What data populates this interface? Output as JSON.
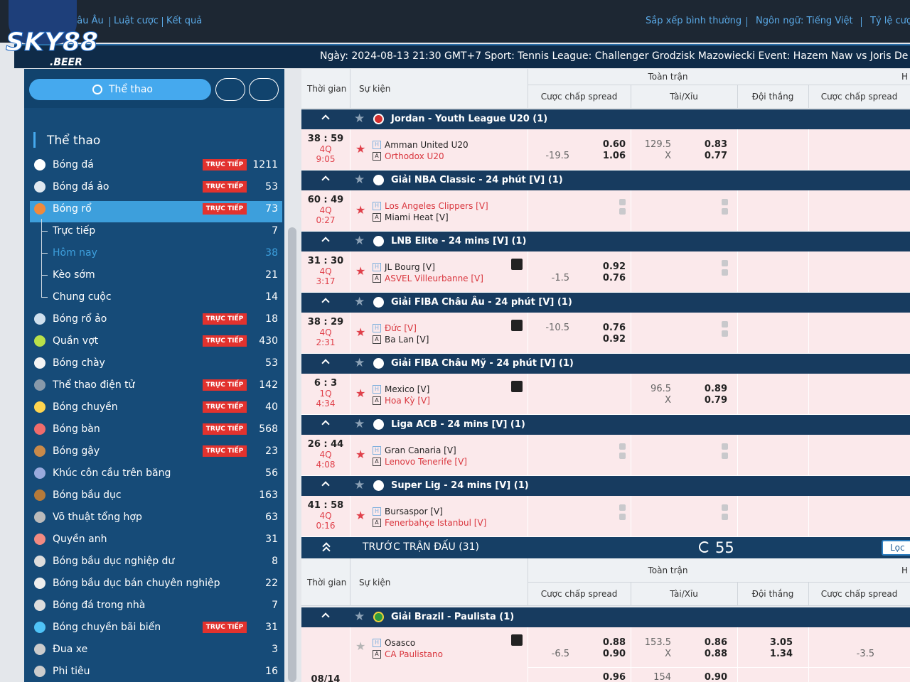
{
  "logo": {
    "text": "SKY88",
    "sub": ".BEER"
  },
  "nav": {
    "links": [
      "hâu Âu",
      "Luật cược",
      "Kết quả"
    ],
    "right": [
      "Sắp xếp bình thường",
      "Ngôn ngữ: Tiếng Việt",
      "Tỷ lệ cược"
    ]
  },
  "ticker": "Ngày:  2024-08-13 21:30 GMT+7 Sport: Tennis League: Challenger Grodzisk Mazowiecki Event: Hazem Naw vs Joris De",
  "sidebar": {
    "button": "Thể thao",
    "heading": "Thể thao",
    "live_label": "TRỰC TIẾP",
    "items": [
      {
        "name": "Bóng đá",
        "count": "1211",
        "live": true
      },
      {
        "name": "Bóng đá ảo",
        "count": "53",
        "live": true
      },
      {
        "name": "Bóng rổ",
        "count": "73",
        "live": true,
        "active": true
      },
      {
        "name": "Trực tiếp",
        "count": "7",
        "sub": true
      },
      {
        "name": "Hôm nay",
        "count": "38",
        "sub": true,
        "selected": true
      },
      {
        "name": "Kèo sớm",
        "count": "21",
        "sub": true
      },
      {
        "name": "Chung cuộc",
        "count": "14",
        "sub": true
      },
      {
        "name": "Bóng rổ ảo",
        "count": "18",
        "live": true
      },
      {
        "name": "Quần vợt",
        "count": "430",
        "live": true
      },
      {
        "name": "Bóng chày",
        "count": "53"
      },
      {
        "name": "Thể thao điện tử",
        "count": "142",
        "live": true
      },
      {
        "name": "Bóng chuyền",
        "count": "40",
        "live": true
      },
      {
        "name": "Bóng bàn",
        "count": "568",
        "live": true
      },
      {
        "name": "Bóng gậy",
        "count": "23",
        "live": true
      },
      {
        "name": "Khúc côn cầu trên băng",
        "count": "56"
      },
      {
        "name": "Bóng bầu dục",
        "count": "163"
      },
      {
        "name": "Võ thuật tổng hợp",
        "count": "63"
      },
      {
        "name": "Quyền anh",
        "count": "31"
      },
      {
        "name": "Bóng bầu dục nghiệp dư",
        "count": "8"
      },
      {
        "name": "Bóng bầu dục bán chuyên nghiệp",
        "count": "22"
      },
      {
        "name": "Bóng đá trong nhà",
        "count": "7"
      },
      {
        "name": "Bóng chuyền bãi biển",
        "count": "31",
        "live": true
      },
      {
        "name": "Đua xe",
        "count": "3"
      },
      {
        "name": "Phi tiêu",
        "count": "16"
      }
    ]
  },
  "table": {
    "header": {
      "time": "Thời gian",
      "event": "Sự kiện",
      "full": "Toàn trận",
      "hdp": "Cược chấp spread",
      "ou": "Tài/Xỉu",
      "win": "Đội thắng",
      "hdp2": "Cược chấp spread",
      "half": "H"
    },
    "home_tag": "H",
    "away_tag": "A",
    "live_leagues": [
      {
        "name": "Jordan - Youth League U20 (1)",
        "flag": "jordan",
        "matches": [
          {
            "score": "38 : 59",
            "period": "4Q",
            "clock": "9:05",
            "home": "Amman United U20",
            "away": "Orthodox U20",
            "fav": "away",
            "hdp": {
              "line": "-19.5",
              "home": "0.60",
              "away": "1.06"
            },
            "ou": {
              "line": "129.5",
              "mark": "X",
              "over": "0.83",
              "under": "0.77"
            }
          }
        ]
      },
      {
        "name": "Giải NBA Classic - 24 phút [V] (1)",
        "flag": "virtual",
        "matches": [
          {
            "score": "60 : 49",
            "period": "4Q",
            "clock": "0:27",
            "home": "Los Angeles Clippers [V]",
            "away": "Miami Heat [V]",
            "fav": "home",
            "hdp_locked": true,
            "ou_locked": true
          }
        ]
      },
      {
        "name": "LNB Elite - 24 mins [V] (1)",
        "flag": "virtual",
        "matches": [
          {
            "score": "31 : 30",
            "period": "4Q",
            "clock": "3:17",
            "home": "JL Bourg [V]",
            "away": "ASVEL Villeurbanne [V]",
            "fav": "away",
            "video": true,
            "hdp": {
              "line": "-1.5",
              "home": "0.92",
              "away": "0.76"
            },
            "ou_locked": true
          }
        ]
      },
      {
        "name": "Giải FIBA Châu Âu - 24 phút [V] (1)",
        "flag": "virtual",
        "matches": [
          {
            "score": "38 : 29",
            "period": "4Q",
            "clock": "2:31",
            "home": "Đức [V]",
            "away": "Ba Lan [V]",
            "fav": "home",
            "video": true,
            "hdp": {
              "line": "-10.5",
              "home": "0.76",
              "away": "0.92"
            },
            "ou_locked": true
          }
        ]
      },
      {
        "name": "Giải FIBA Châu Mỹ - 24 phút [V] (1)",
        "flag": "virtual",
        "matches": [
          {
            "score": "6 : 3",
            "period": "1Q",
            "clock": "4:34",
            "home": "Mexico [V]",
            "away": "Hoa Kỳ [V]",
            "fav": "away",
            "video": true,
            "ou": {
              "line": "96.5",
              "mark": "X",
              "over": "0.89",
              "under": "0.79"
            }
          }
        ]
      },
      {
        "name": "Liga ACB - 24 mins [V] (1)",
        "flag": "virtual",
        "matches": [
          {
            "score": "26 : 44",
            "period": "4Q",
            "clock": "4:08",
            "home": "Gran Canaria [V]",
            "away": "Lenovo Tenerife [V]",
            "fav": "away",
            "hdp_locked": true,
            "ou_locked": true
          }
        ]
      },
      {
        "name": "Super Lig - 24 mins [V] (1)",
        "flag": "virtual",
        "matches": [
          {
            "score": "41 : 58",
            "period": "4Q",
            "clock": "0:16",
            "home": "Bursaspor [V]",
            "away": "Fenerbahçe Istanbul [V]",
            "fav": "away",
            "hdp_locked": true,
            "ou_locked": true
          }
        ]
      }
    ],
    "prematch": {
      "title": "TRƯỚC TRẬN ĐẤU (31)",
      "refresh": "55",
      "filter": "Lọc",
      "leagues": [
        {
          "name": "Giải Brazil - Paulista (1)",
          "flag": "brazil",
          "matches": [
            {
              "date": "08/14",
              "home": "Osasco",
              "away": "CA Paulistano",
              "fav": "away",
              "stats": true,
              "hdp": {
                "line": "-6.5",
                "home": "0.88",
                "away": "0.90"
              },
              "ou": {
                "line": "153.5",
                "mark": "X",
                "over": "0.86",
                "under": "0.88"
              },
              "win": {
                "home": "3.05",
                "away": "1.34"
              },
              "hdp2": {
                "line": "-3.5"
              },
              "next": {
                "hdp_home": "0.96",
                "ou_line": "154",
                "ou_over": "0.90"
              }
            }
          ]
        }
      ]
    }
  }
}
